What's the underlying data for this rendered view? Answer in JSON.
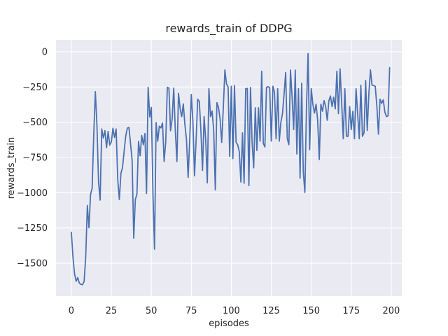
{
  "chart_data": {
    "type": "line",
    "title": "rewards_train of DDPG",
    "xlabel": "episodes",
    "ylabel": "rewards_train",
    "x_tick_labels": [
      "0",
      "25",
      "50",
      "75",
      "100",
      "125",
      "150",
      "175",
      "200"
    ],
    "x_tick_values": [
      0,
      25,
      50,
      75,
      100,
      125,
      150,
      175,
      200
    ],
    "y_tick_labels": [
      "0",
      "−250",
      "−500",
      "−750",
      "−1000",
      "−1250",
      "−1500"
    ],
    "y_tick_values": [
      0,
      -250,
      -500,
      -750,
      -1000,
      -1250,
      -1500
    ],
    "xlim": [
      -9.6,
      206.6
    ],
    "ylim": [
      -1733,
      84
    ],
    "grid": true,
    "legend": false,
    "style": "seaborn-darkgrid",
    "colors": {
      "line": "#4c72b0",
      "axes_background": "#eaeaf2",
      "grid": "#ffffff",
      "text": "#262626",
      "figure_background": "#ffffff"
    },
    "series": [
      {
        "name": "rewards_train",
        "x_is_episode_index": true,
        "values": [
          -1280,
          -1455,
          -1575,
          -1628,
          -1602,
          -1641,
          -1650,
          -1652,
          -1628,
          -1450,
          -1090,
          -1248,
          -1012,
          -968,
          -590,
          -283,
          -520,
          -925,
          -1052,
          -548,
          -612,
          -560,
          -680,
          -565,
          -662,
          -640,
          -543,
          -608,
          -548,
          -905,
          -1048,
          -862,
          -820,
          -705,
          -598,
          -542,
          -536,
          -652,
          -770,
          -1322,
          -1048,
          -1010,
          -635,
          -738,
          -594,
          -660,
          -580,
          -1005,
          -252,
          -462,
          -395,
          -1000,
          -1400,
          -502,
          -635,
          -528,
          -540,
          -505,
          -778,
          -640,
          -252,
          -258,
          -560,
          -480,
          -258,
          -560,
          -778,
          -295,
          -402,
          -460,
          -370,
          -518,
          -626,
          -891,
          -626,
          -303,
          -493,
          -880,
          -626,
          -336,
          -353,
          -560,
          -841,
          -460,
          -626,
          -930,
          -262,
          -460,
          -420,
          -560,
          -980,
          -361,
          -394,
          -477,
          -643,
          -400,
          -129,
          -228,
          -250,
          -742,
          -245,
          -758,
          -240,
          -642,
          -660,
          -709,
          -924,
          -576,
          -933,
          -262,
          -260,
          -949,
          -253,
          -642,
          -823,
          -397,
          -700,
          -397,
          -634,
          -138,
          -650,
          -675,
          -252,
          -248,
          -255,
          -634,
          -245,
          -287,
          -617,
          -262,
          -634,
          -500,
          -440,
          -300,
          -147,
          -617,
          -659,
          -130,
          -320,
          -552,
          -130,
          -725,
          -262,
          -897,
          -223,
          -850,
          -998,
          -400,
          -13,
          -695,
          -262,
          -372,
          -435,
          -372,
          -486,
          -765,
          -372,
          -422,
          -347,
          -389,
          -486,
          -347,
          -314,
          -389,
          -322,
          -405,
          -138,
          -439,
          -121,
          -364,
          -617,
          -262,
          -600,
          -600,
          -389,
          -552,
          -422,
          -617,
          -262,
          -440,
          -617,
          -237,
          -600,
          -574,
          -204,
          -558,
          -300,
          -129,
          -237,
          -240,
          -245,
          -385,
          -585,
          -336,
          -366,
          -341,
          -427,
          -460,
          -455,
          -113
        ]
      }
    ]
  }
}
